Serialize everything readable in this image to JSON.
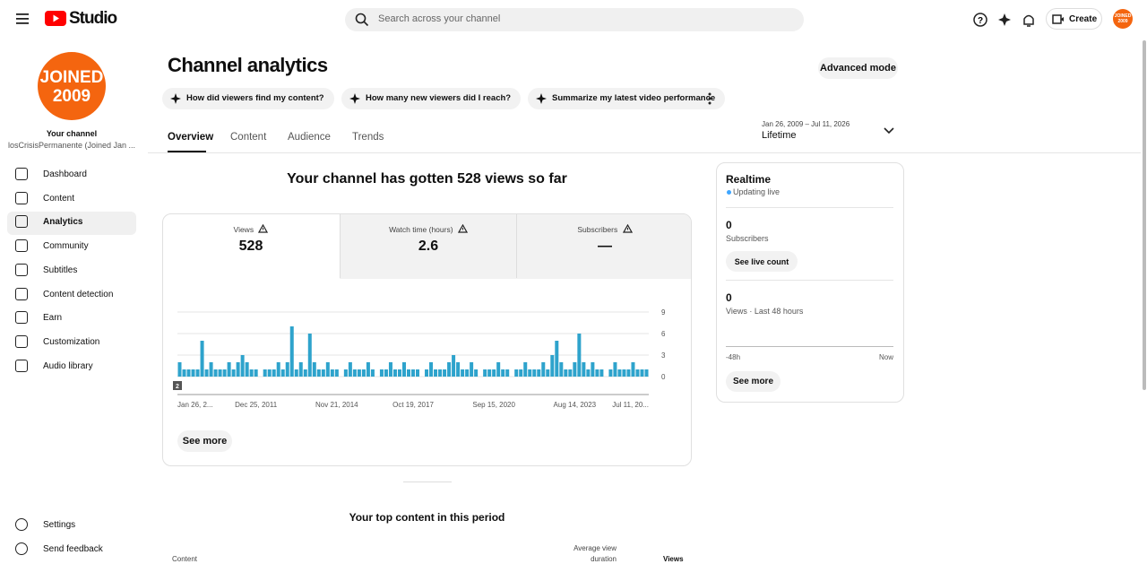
{
  "header": {
    "logo": "Studio",
    "search_placeholder": "Search across your channel",
    "create": "Create",
    "avatar_text": "JOINED 2009"
  },
  "sidebar": {
    "avatar_line1": "JOINED",
    "avatar_line2": "2009",
    "channel_label": "Your channel",
    "channel_name": "losCrisisPermanente (Joined Jan ...",
    "nav": [
      "Dashboard",
      "Content",
      "Analytics",
      "Community",
      "Subtitles",
      "Content detection",
      "Earn",
      "Customization",
      "Audio library"
    ],
    "footer": [
      "Settings",
      "Send feedback"
    ]
  },
  "page": {
    "title": "Channel analytics",
    "advanced_mode": "Advanced mode",
    "suggestions": [
      "How did viewers find my content?",
      "How many new viewers did I reach?",
      "Summarize my latest video performance"
    ],
    "tabs": [
      "Overview",
      "Content",
      "Audience",
      "Trends"
    ],
    "date_range": "Jan 26, 2009 – Jul 11, 2026",
    "period": "Lifetime",
    "headline": "Your channel has gotten 528 views so far",
    "metrics": [
      {
        "label": "Views",
        "value": 528
      },
      {
        "label": "Watch time (hours)",
        "value": 2.6
      },
      {
        "label": "Subscribers",
        "value": "—"
      }
    ],
    "see_more": "See more",
    "top_content_title": "Your top content in this period",
    "columns": [
      "Content",
      "Average view",
      "duration",
      "Views"
    ]
  },
  "realtime": {
    "title": "Realtime",
    "status": "Updating live",
    "subscribers": 0,
    "subscribers_label": "Subscribers",
    "live_count": "See live count",
    "views": 0,
    "views_label": "Views · Last 48 hours",
    "axis_start": "-48h",
    "axis_end": "Now",
    "see_more": "See more"
  },
  "chart_data": {
    "type": "bar",
    "color": "#2ea3cc",
    "grid": true,
    "ylim": [
      0,
      9
    ],
    "yticks": [
      0,
      3,
      6,
      9
    ],
    "marker_label": "2",
    "categories": [
      "Jan 26, 2...",
      null,
      null,
      null,
      null,
      null,
      null,
      null,
      null,
      null,
      null,
      null,
      null,
      null,
      null,
      null,
      null,
      "Dec 25, 2011",
      null,
      null,
      null,
      null,
      null,
      null,
      null,
      null,
      null,
      null,
      null,
      null,
      null,
      null,
      null,
      null,
      null,
      "Nov 21, 2014",
      null,
      null,
      null,
      null,
      null,
      null,
      null,
      null,
      null,
      null,
      null,
      null,
      null,
      null,
      null,
      null,
      "Oct 19, 2017",
      null,
      null,
      null,
      null,
      null,
      null,
      null,
      null,
      null,
      null,
      null,
      null,
      null,
      null,
      null,
      null,
      null,
      "Sep 15, 2020",
      null,
      null,
      null,
      null,
      null,
      null,
      null,
      null,
      null,
      null,
      null,
      null,
      null,
      null,
      null,
      null,
      null,
      "Aug 14, 2023",
      null,
      null,
      null,
      null,
      null,
      null,
      null,
      null,
      null,
      null,
      null,
      null,
      null,
      null,
      null,
      "Jul 11, 20..."
    ],
    "values": [
      2,
      1,
      1,
      1,
      1,
      5,
      1,
      2,
      1,
      1,
      1,
      2,
      1,
      2,
      3,
      2,
      1,
      1,
      0,
      1,
      1,
      1,
      2,
      1,
      2,
      7,
      1,
      2,
      1,
      6,
      2,
      1,
      1,
      2,
      1,
      1,
      0,
      1,
      2,
      1,
      1,
      1,
      2,
      1,
      0,
      1,
      1,
      2,
      1,
      1,
      2,
      1,
      1,
      1,
      0,
      1,
      2,
      1,
      1,
      1,
      2,
      3,
      2,
      1,
      1,
      2,
      1,
      0,
      1,
      1,
      1,
      2,
      1,
      1,
      0,
      1,
      1,
      2,
      1,
      1,
      1,
      2,
      1,
      3,
      5,
      2,
      1,
      1,
      2,
      6,
      2,
      1,
      2,
      1,
      1,
      0,
      1,
      2,
      1,
      1,
      1,
      2,
      1,
      1,
      1
    ]
  }
}
